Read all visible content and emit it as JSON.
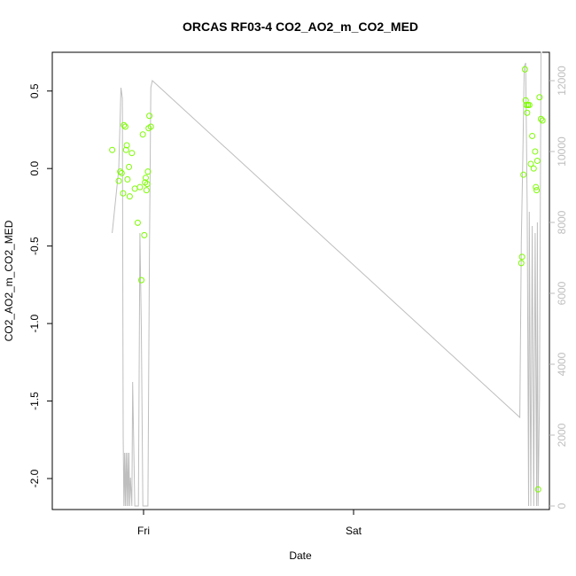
{
  "chart_data": {
    "type": "scatter",
    "title": "ORCAS RF03-4 CO2_AO2_m_CO2_MED",
    "xlabel": "Date",
    "ylabel": "CO2_AO2_m_CO2_MED",
    "x_ticks": [
      "Fri",
      "Sat"
    ],
    "y_ticks": [
      "-2.0",
      "-1.5",
      "-1.0",
      "-0.5",
      "0.0",
      "0.5"
    ],
    "y2_ticks": [
      "0",
      "2000",
      "4000",
      "6000",
      "8000",
      "10000",
      "12000"
    ],
    "ylim": [
      -2.2,
      0.75
    ],
    "y2lim": [
      -100,
      12800
    ],
    "grid": false,
    "colors": {
      "points": "#7cfc00",
      "line": "#bebebe",
      "axes": "#000000"
    },
    "series": [
      {
        "kind": "points",
        "x": [
          "Thu 20:25",
          "Thu 21:10",
          "Thu 21:20",
          "Thu 21:30",
          "Thu 21:40",
          "Thu 21:45",
          "Thu 21:55",
          "Thu 22:00",
          "Thu 22:05",
          "Thu 22:10",
          "Thu 22:20",
          "Thu 22:25",
          "Thu 22:40",
          "Thu 23:00",
          "Thu 23:20",
          "Thu 23:35",
          "Thu 23:45",
          "Thu 23:55",
          "Fri 00:05",
          "Fri 00:10",
          "Fri 00:15",
          "Fri 00:20",
          "Fri 00:25",
          "Fri 00:30",
          "Fri 00:35",
          "Fri 00:40",
          "Fri 00:50",
          "Sat 19:10",
          "Sat 19:15",
          "Sat 19:25",
          "Sat 19:35",
          "Sat 19:40",
          "Sat 19:45",
          "Sat 19:50",
          "Sat 19:55",
          "Sat 20:05",
          "Sat 20:15",
          "Sat 20:25",
          "Sat 20:35",
          "Sat 20:45",
          "Sat 20:50",
          "Sat 20:55",
          "Sat 21:00",
          "Sat 21:05",
          "Sat 21:15",
          "Sat 21:25",
          "Sat 21:35"
        ],
        "y": [
          0.12,
          -0.08,
          -0.02,
          -0.03,
          -0.16,
          0.28,
          0.27,
          0.12,
          0.15,
          -0.07,
          0.01,
          -0.18,
          0.1,
          -0.13,
          -0.35,
          -0.12,
          -0.72,
          0.22,
          -0.43,
          -0.09,
          -0.06,
          -0.14,
          -0.1,
          -0.02,
          0.26,
          0.34,
          0.27,
          -0.61,
          -0.57,
          -0.04,
          0.64,
          0.44,
          0.41,
          0.36,
          0.41,
          0.41,
          0.03,
          0.21,
          0.0,
          0.11,
          -0.12,
          -0.14,
          0.05,
          -2.07,
          0.46,
          0.32,
          0.31
        ]
      },
      {
        "kind": "line",
        "axis": "right",
        "x": [
          "Thu 20:25",
          "Thu 21:10",
          "Thu 21:25",
          "Thu 21:35",
          "Thu 21:40",
          "Thu 21:45",
          "Thu 21:50",
          "Thu 21:55",
          "Thu 22:00",
          "Thu 22:05",
          "Thu 22:10",
          "Thu 22:15",
          "Thu 22:20",
          "Thu 22:25",
          "Thu 22:30",
          "Thu 22:40",
          "Thu 22:45",
          "Thu 23:00",
          "Thu 23:15",
          "Thu 23:25",
          "Thu 23:35",
          "Thu 23:45",
          "Thu 23:55",
          "Fri 00:05",
          "Fri 00:10",
          "Fri 00:20",
          "Fri 00:30",
          "Fri 00:40",
          "Fri 00:50",
          "Fri 01:00",
          "Sat 19:00",
          "Sat 19:10",
          "Sat 19:20",
          "Sat 19:30",
          "Sat 19:40",
          "Sat 19:50",
          "Sat 20:00",
          "Sat 20:05",
          "Sat 20:15",
          "Sat 20:25",
          "Sat 20:35",
          "Sat 20:45",
          "Sat 20:55",
          "Sat 21:00",
          "Sat 21:05",
          "Sat 21:15",
          "Sat 21:25",
          "Sat 21:35"
        ],
        "y": [
          7700,
          9500,
          11800,
          11500,
          2000,
          0,
          1500,
          0,
          1500,
          0,
          1500,
          0,
          1500,
          0,
          800,
          0,
          3500,
          0,
          0,
          0,
          7700,
          5000,
          0,
          0,
          0,
          0,
          0,
          7000,
          11800,
          12000,
          2500,
          7500,
          9700,
          12400,
          12500,
          8500,
          0,
          8300,
          0,
          7900,
          0,
          7700,
          0,
          8000,
          0,
          3000,
          12800,
          12800
        ]
      }
    ]
  }
}
